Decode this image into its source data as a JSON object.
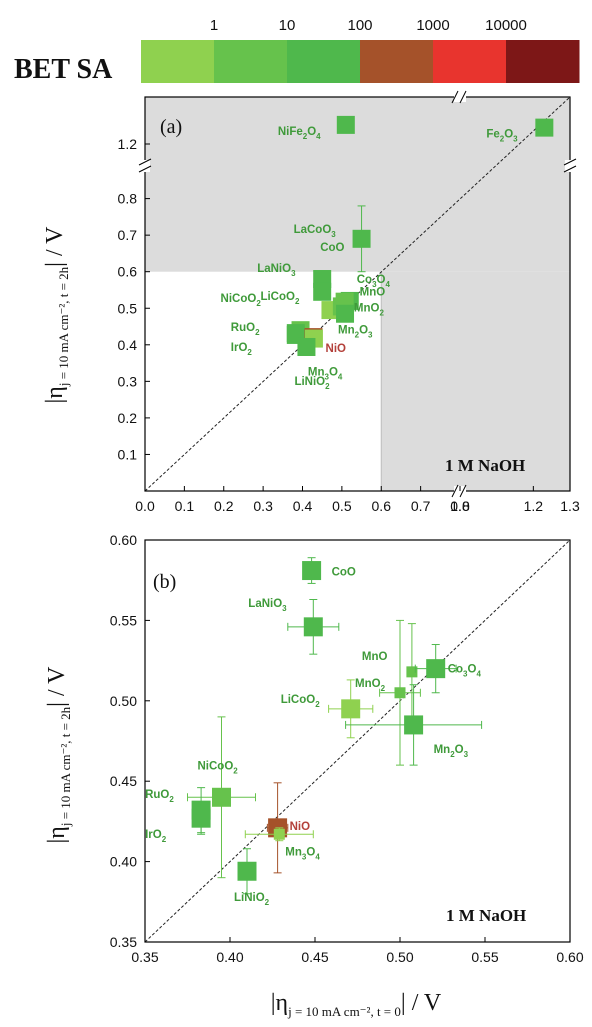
{
  "colorbar": {
    "title": "BET SA",
    "ticks": [
      "1",
      "10",
      "100",
      "1000",
      "10000"
    ],
    "colors": [
      "#8fd14f",
      "#66c24c",
      "#4fb84c",
      "#a5522a",
      "#e8342e",
      "#7d1717"
    ]
  },
  "chart_data": [
    {
      "panel": "(a)",
      "type": "scatter",
      "annotation": "1 M NaOH",
      "xlabel": "|η",
      "xlabel_sub": "j = 10 mA cm⁻², t = 0",
      "xlabel_tail": "| / V",
      "ylabel": "|η",
      "ylabel_sub": "j = 10 mA cm⁻², t = 2h",
      "ylabel_tail": "| / V",
      "axis_break": {
        "lower": [
          0,
          0.8
        ],
        "upper_ticks": [
          1.0,
          1.2
        ],
        "broken_range": [
          0.8,
          1.0
        ]
      },
      "xticks": [
        "0.0",
        "0.1",
        "0.2",
        "0.3",
        "0.4",
        "0.5",
        "0.6",
        "0.7",
        "0.8",
        "1.0",
        "1.2",
        "1.3"
      ],
      "yticks": [
        "0.1",
        "0.2",
        "0.3",
        "0.4",
        "0.5",
        "0.6",
        "0.7",
        "0.8",
        "1.2"
      ],
      "shaded_region": "gray where x > 0.6 or y > 0.6",
      "parity_line": true,
      "points": [
        {
          "name": "NiFe2O4",
          "label": "NiFe",
          "sub": "2",
          "label2": "O",
          "sub2": "4",
          "x": 0.51,
          "y": 1.27,
          "color": "#4fb84c"
        },
        {
          "name": "Fe2O3",
          "label": "Fe",
          "sub": "2",
          "label2": "O",
          "sub2": "3",
          "x": 1.23,
          "y": 1.26,
          "color": "#4fb84c"
        },
        {
          "name": "LaCoO3",
          "label": "LaCoO",
          "sub": "3",
          "x": 0.55,
          "y": 0.69,
          "xerr": 0.0,
          "yerr": 0.09,
          "color": "#4fb84c"
        },
        {
          "name": "CoO",
          "label": "CoO",
          "sub": "",
          "x": 0.45,
          "y": 0.58,
          "color": "#4fb84c"
        },
        {
          "name": "LaNiO3",
          "label": "LaNiO",
          "sub": "3",
          "x": 0.45,
          "y": 0.545,
          "color": "#4fb84c"
        },
        {
          "name": "Co3O4",
          "label": "Co",
          "sub": "3",
          "label2": "O",
          "sub2": "4",
          "x": 0.52,
          "y": 0.52,
          "color": "#4fb84c"
        },
        {
          "name": "MnO",
          "label": "MnO",
          "sub": "",
          "x": 0.507,
          "y": 0.518,
          "color": "#66c24c"
        },
        {
          "name": "LiCoO2",
          "label": "LiCoO",
          "sub": "2",
          "x": 0.471,
          "y": 0.495,
          "color": "#8fd14f"
        },
        {
          "name": "MnO2",
          "label": "MnO",
          "sub": "2",
          "x": 0.5,
          "y": 0.505,
          "color": "#66c24c"
        },
        {
          "name": "NiCoO2",
          "label": "NiCoO",
          "sub": "2",
          "x": 0.395,
          "y": 0.44,
          "color": "#66c24c"
        },
        {
          "name": "Mn2O3",
          "label": "Mn",
          "sub": "2",
          "label2": "O",
          "sub2": "3",
          "x": 0.508,
          "y": 0.485,
          "color": "#4fb84c"
        },
        {
          "name": "RuO2",
          "label": "RuO",
          "sub": "2",
          "x": 0.383,
          "y": 0.432,
          "color": "#4fb84c"
        },
        {
          "name": "IrO2",
          "label": "IrO",
          "sub": "2",
          "x": 0.383,
          "y": 0.427,
          "color": "#4fb84c"
        },
        {
          "name": "NiO",
          "label": "NiO",
          "sub": "",
          "x": 0.428,
          "y": 0.421,
          "color": "#a5522a"
        },
        {
          "name": "Mn3O4",
          "label": "Mn",
          "sub": "3",
          "label2": "O",
          "sub2": "4",
          "x": 0.429,
          "y": 0.417,
          "color": "#8fd14f"
        },
        {
          "name": "LiNiO2",
          "label": "LiNiO",
          "sub": "2",
          "x": 0.41,
          "y": 0.394,
          "color": "#4fb84c"
        }
      ]
    },
    {
      "panel": "(b)",
      "type": "scatter",
      "annotation": "1 M NaOH",
      "xlabel": "|η",
      "xlabel_sub": "j = 10 mA cm⁻², t = 0",
      "xlabel_tail": "| / V",
      "ylabel": "|η",
      "ylabel_sub": "j = 10 mA cm⁻², t = 2h",
      "ylabel_tail": "| / V",
      "xlim": [
        0.35,
        0.6
      ],
      "ylim": [
        0.35,
        0.6
      ],
      "xticks": [
        "0.35",
        "0.40",
        "0.45",
        "0.50",
        "0.55",
        "0.60"
      ],
      "yticks": [
        "0.35",
        "0.40",
        "0.45",
        "0.50",
        "0.55",
        "0.60"
      ],
      "parity_line": true,
      "points": [
        {
          "name": "CoO",
          "label": "CoO",
          "sub": "",
          "x": 0.448,
          "y": 0.581,
          "xerr": 0.0,
          "yerr": 0.008,
          "color": "#4fb84c"
        },
        {
          "name": "LaNiO3",
          "label": "LaNiO",
          "sub": "3",
          "x": 0.449,
          "y": 0.546,
          "xerr": 0.015,
          "yerr": 0.017,
          "color": "#4fb84c"
        },
        {
          "name": "MnO",
          "label": "MnO",
          "sub": "",
          "x": 0.507,
          "y": 0.518,
          "xerr": 0.0,
          "yerr": 0.03,
          "color": "#66c24c"
        },
        {
          "name": "Co3O4",
          "label": "Co",
          "sub": "3",
          "label2": "O",
          "sub2": "4",
          "x": 0.521,
          "y": 0.52,
          "xerr": 0.012,
          "yerr": 0.015,
          "color": "#4fb84c"
        },
        {
          "name": "MnO2",
          "label": "MnO",
          "sub": "2",
          "x": 0.5,
          "y": 0.505,
          "xerr": 0.012,
          "yerr": 0.045,
          "color": "#66c24c"
        },
        {
          "name": "LiCoO2",
          "label": "LiCoO",
          "sub": "2",
          "x": 0.471,
          "y": 0.495,
          "xerr": 0.013,
          "yerr": 0.018,
          "color": "#8fd14f"
        },
        {
          "name": "Mn2O3",
          "label": "Mn",
          "sub": "2",
          "label2": "O",
          "sub2": "3",
          "x": 0.508,
          "y": 0.485,
          "xerr": 0.04,
          "yerr": 0.025,
          "color": "#4fb84c"
        },
        {
          "name": "NiCoO2",
          "label": "NiCoO",
          "sub": "2",
          "x": 0.395,
          "y": 0.44,
          "xerr": 0.02,
          "yerr": 0.05,
          "color": "#66c24c"
        },
        {
          "name": "RuO2",
          "label": "RuO",
          "sub": "2",
          "x": 0.383,
          "y": 0.432,
          "xerr": 0.004,
          "yerr": 0.014,
          "color": "#4fb84c"
        },
        {
          "name": "IrO2",
          "label": "IrO",
          "sub": "2",
          "x": 0.383,
          "y": 0.427,
          "xerr": 0.004,
          "yerr": 0.01,
          "color": "#4fb84c"
        },
        {
          "name": "NiO",
          "label": "NiO",
          "sub": "",
          "x": 0.428,
          "y": 0.421,
          "xerr": 0.006,
          "yerr": 0.028,
          "color": "#a5522a"
        },
        {
          "name": "Mn3O4",
          "label": "Mn",
          "sub": "3",
          "label2": "O",
          "sub2": "4",
          "x": 0.429,
          "y": 0.417,
          "xerr": 0.02,
          "yerr": 0.004,
          "color": "#8fd14f"
        },
        {
          "name": "LiNiO2",
          "label": "LiNiO",
          "sub": "2",
          "x": 0.41,
          "y": 0.394,
          "xerr": 0.004,
          "yerr": 0.014,
          "color": "#4fb84c"
        }
      ]
    }
  ]
}
